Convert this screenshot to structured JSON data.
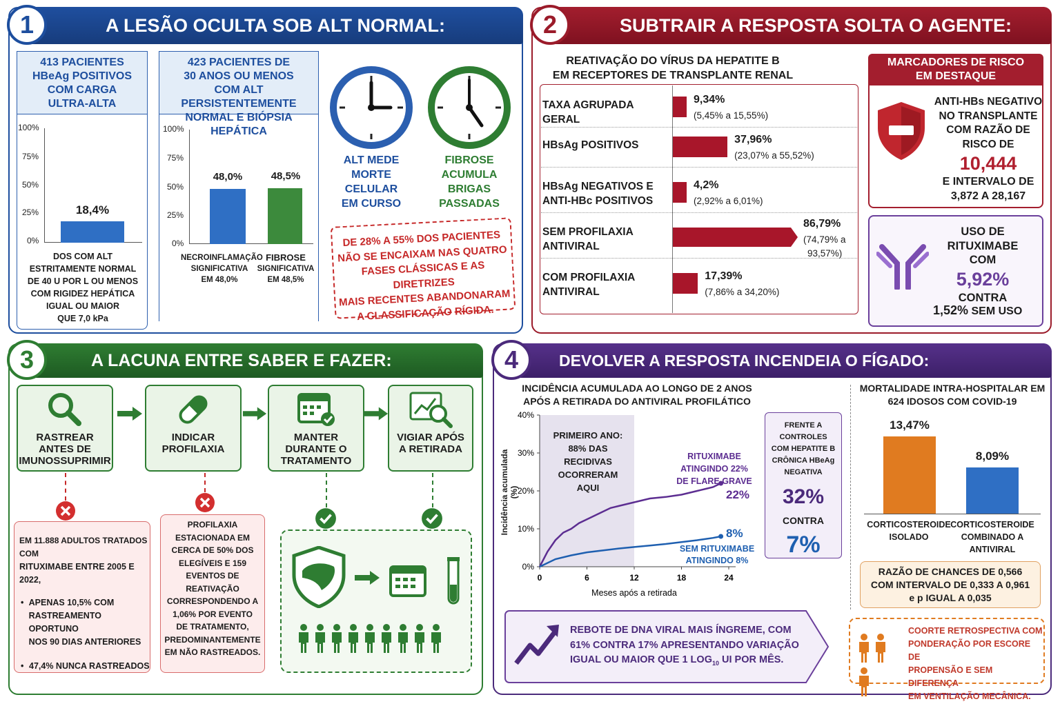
{
  "colors": {
    "blue": "#1d4e9e",
    "red": "#9b1b2a",
    "green": "#2e7d32",
    "purple": "#4b2a7b",
    "orange": "#e07b20"
  },
  "p1": {
    "number": "1",
    "title": "A LESÃO OCULTA SOB ALT NORMAL:",
    "box1": {
      "l1": "413 PACIENTES",
      "l2": "HBeAg POSITIVOS",
      "l3": "COM CARGA",
      "l4": "ULTRA-ALTA"
    },
    "box2": {
      "l1": "423 PACIENTES DE",
      "l2": "30 ANOS OU MENOS",
      "l3": "COM ALT PERSISTENTEMENTE",
      "l4": "NORMAL E BIÓPSIA HEPÁTICA"
    },
    "ticks": [
      "100%",
      "75%",
      "50%",
      "25%",
      "0%"
    ],
    "chart1": {
      "value_label": "18,4%",
      "caption": [
        "DOS COM ALT",
        "ESTRITAMENTE NORMAL",
        "DE 40 U POR L OU MENOS",
        "COM RIGIDEZ HEPÁTICA",
        "IGUAL OU MAIOR",
        "QUE 7,0 kPa"
      ]
    },
    "chart2": {
      "v1": "48,0%",
      "v2": "48,5%",
      "c1": [
        "NECROINFLAMAÇÃO",
        "SIGNIFICATIVA",
        "EM 48,0%"
      ],
      "c2": [
        "FIBROSE",
        "SIGNIFICATIVA",
        "EM 48,5%"
      ]
    },
    "clock1": [
      "ALT MEDE",
      "MORTE CELULAR",
      "EM CURSO"
    ],
    "clock2": [
      "FIBROSE",
      "ACUMULA BRIGAS",
      "PASSADAS"
    ],
    "stamp": [
      "DE 28% A 55% DOS PACIENTES",
      "NÃO SE ENCAIXAM NAS QUATRO",
      "FASES CLÁSSICAS E AS DIRETRIZES",
      "MAIS RECENTES ABANDONARAM",
      "A CLASSIFICAÇÃO RÍGIDA."
    ]
  },
  "chart_data": [
    {
      "type": "bar",
      "categories": [
        "DOS COM ALT ESTRITAMENTE NORMAL DE 40 U POR L OU MENOS COM RIGIDEZ HEPÁTICA IGUAL OU MAIOR QUE 7,0 kPa"
      ],
      "values": [
        18.4
      ],
      "ylim": [
        0,
        100
      ]
    },
    {
      "type": "bar",
      "categories": [
        "NECROINFLAMAÇÃO SIGNIFICATIVA",
        "FIBROSE SIGNIFICATIVA"
      ],
      "values": [
        48.0,
        48.5
      ],
      "ylim": [
        0,
        100
      ]
    },
    {
      "type": "bar",
      "title": "REATIVAÇÃO DO VÍRUS DA HEPATITE B EM RECEPTORES DE TRANSPLANTE RENAL",
      "categories": [
        "TAXA AGRUPADA GERAL",
        "HBsAg POSITIVOS",
        "HBsAg NEGATIVOS E ANTI-HBc POSITIVOS",
        "SEM PROFILAXIA ANTIVIRAL",
        "COM PROFILAXIA ANTIVIRAL"
      ],
      "values": [
        9.34,
        37.96,
        4.2,
        86.79,
        17.39
      ]
    },
    {
      "type": "line",
      "title": "INCIDÊNCIA ACUMULADA AO LONGO DE 2 ANOS APÓS A RETIRADA DO ANTIVIRAL PROFILÁTICO",
      "xlabel": "Meses após a retirada",
      "ylabel": "Incidência acumulada (%)",
      "xlim": [
        0,
        24
      ],
      "ylim": [
        0,
        40
      ],
      "series": [
        {
          "name": "RITUXIMABE",
          "x": [
            0,
            1,
            2,
            3,
            4,
            5,
            6,
            7,
            8,
            9,
            10,
            11,
            12,
            13,
            14,
            15,
            16,
            17,
            18,
            19,
            20,
            21,
            22,
            23
          ],
          "values": [
            0,
            4,
            7,
            9,
            10,
            11.5,
            12.5,
            13.5,
            14.5,
            15.5,
            16,
            16.5,
            17,
            17.5,
            18,
            18.2,
            18.4,
            18.7,
            19,
            19.5,
            20,
            20.5,
            21,
            22
          ]
        },
        {
          "name": "SEM RITUXIMABE",
          "x": [
            0,
            2,
            4,
            6,
            8,
            10,
            12,
            14,
            16,
            18,
            20,
            22,
            23
          ],
          "values": [
            0,
            2,
            3,
            3.8,
            4.3,
            4.8,
            5.2,
            5.6,
            6,
            6.5,
            7,
            7.6,
            8
          ]
        }
      ]
    },
    {
      "type": "bar",
      "title": "MORTALIDADE INTRA-HOSPITALAR EM 624 IDOSOS COM COVID-19",
      "categories": [
        "CORTICOSTEROIDE ISOLADO",
        "CORTICOSTEROIDE COMBINADO A ANTIVIRAL"
      ],
      "values": [
        13.47,
        8.09
      ]
    }
  ],
  "p2": {
    "number": "2",
    "title": "SUBTRAIR A RESPOSTA SOLTA O AGENTE:",
    "chart_title": [
      "REATIVAÇÃO DO VÍRUS DA HEPATITE B",
      "EM RECEPTORES DE TRANSPLANTE RENAL"
    ],
    "rows": [
      {
        "label": [
          "TAXA AGRUPADA GERAL"
        ],
        "value": "9,34%",
        "ci": "(5,45% a 15,55%)"
      },
      {
        "label": [
          "HBsAg POSITIVOS"
        ],
        "value": "37,96%",
        "ci": "(23,07% a 55,52%)"
      },
      {
        "label": [
          "HBsAg NEGATIVOS E",
          "ANTI-HBc POSITIVOS"
        ],
        "value": "4,2%",
        "ci": "(2,92% a 6,01%)"
      },
      {
        "label": [
          "SEM PROFILAXIA",
          "ANTIVIRAL"
        ],
        "value": "86,79%",
        "ci": "(74,79% a",
        "ci2": "93,57%)"
      },
      {
        "label": [
          "COM PROFILAXIA",
          "ANTIVIRAL"
        ],
        "value": "17,39%",
        "ci": "(7,86% a 34,20%)"
      }
    ],
    "risk_title": [
      "MARCADORES DE RISCO",
      "EM DESTAQUE"
    ],
    "risk1": [
      "ANTI-HBs NEGATIVO",
      "NO TRANSPLANTE",
      "COM RAZÃO DE",
      "RISCO DE"
    ],
    "risk1_value": "10,444",
    "risk1_b": [
      "E INTERVALO DE",
      "3,872 A 28,167"
    ],
    "risk2": [
      "USO DE",
      "RITUXIMABE",
      "COM"
    ],
    "risk2_value": "5,92%",
    "risk2_b": "CONTRA",
    "risk2_c": "1,52%",
    "risk2_d": "SEM USO"
  },
  "p3": {
    "number": "3",
    "title": "A LACUNA ENTRE SABER E FAZER:",
    "steps": [
      [
        "RASTREAR",
        "ANTES DE",
        "IMUNOSSUPRIMIR"
      ],
      [
        "INDICAR",
        "PROFILAXIA"
      ],
      [
        "MANTER",
        "DURANTE O",
        "TRATAMENTO"
      ],
      [
        "VIGIAR APÓS",
        "A RETIRADA"
      ]
    ],
    "box1": {
      "l1": "EM 11.888 ADULTOS TRATADOS COM",
      "l2": "RITUXIMABE ENTRE 2005 E 2022,",
      "b1": [
        "APENAS 10,5% COM",
        "RASTREAMENTO OPORTUNO",
        "NOS 90 DIAS ANTERIORES"
      ],
      "b2": "47,4% NUNCA RASTREADOS"
    },
    "box2": [
      "PROFILAXIA",
      "ESTACIONADA EM",
      "CERCA DE 50% DOS",
      "ELEGÍVEIS E 159",
      "EVENTOS DE",
      "REATIVAÇÃO",
      "CORRESPONDENDO A",
      "1,06% POR EVENTO",
      "DE TRATAMENTO,",
      "PREDOMINANTEMENTE",
      "EM NÃO RASTREADOS."
    ]
  },
  "p4": {
    "number": "4",
    "title": "DEVOLVER A RESPOSTA INCENDEIA O FÍGADO:",
    "chart_title": [
      "INCIDÊNCIA ACUMULADA AO LONGO DE 2 ANOS",
      "APÓS A RETIRADA DO ANTIVIRAL PROFILÁTICO"
    ],
    "yticks": [
      "40%",
      "30%",
      "20%",
      "10%",
      "0%"
    ],
    "xticks": [
      "0",
      "6",
      "12",
      "18",
      "24"
    ],
    "xlabel": "Meses após a retirada",
    "ylabel": "Incidência acumulada (%)",
    "shade": [
      "PRIMEIRO ANO:",
      "88% DAS",
      "RECIDIVAS",
      "OCORRERAM",
      "AQUI"
    ],
    "rit": [
      "RITUXIMABE",
      "ATINGINDO 22%",
      "DE FLARE GRAVE"
    ],
    "rit_end": "22%",
    "non_end": "8%",
    "non": [
      "SEM RITUXIMABE",
      "ATINGINDO 8%"
    ],
    "ctrl": [
      "FRENTE A CONTROLES",
      "COM HEPATITE B",
      "CRÔNICA HBeAg",
      "NEGATIVA"
    ],
    "ctrl_v1": "32%",
    "ctrl_mid": "CONTRA",
    "ctrl_v2": "7%",
    "rebote": [
      "REBOTE DE DNA VIRAL MAIS ÍNGREME, COM",
      "61% CONTRA 17% APRESENTANDO VARIAÇÃO",
      "IGUAL OU MAIOR QUE 1 LOG",
      "10",
      " UI POR MÊS."
    ],
    "mort_title": [
      "MORTALIDADE INTRA-HOSPITALAR EM",
      "624 IDOSOS COM COVID-19"
    ],
    "m1": "13,47%",
    "m2": "8,09%",
    "mc1": [
      "CORTICOSTEROIDE",
      "ISOLADO"
    ],
    "mc2": [
      "CORTICOSTEROIDE",
      "COMBINADO A",
      "ANTIVIRAL"
    ],
    "or": [
      "RAZÃO DE CHANCES DE 0,566",
      "COM INTERVALO DE 0,333 A 0,961",
      "e p IGUAL A 0,035"
    ],
    "coorte": [
      "COORTE RETROSPECTIVA COM",
      "PONDERAÇÃO POR ESCORE DE",
      "PROPENSÃO E SEM DIFERENÇA",
      "EM VENTILAÇÃO MECÂNICA."
    ]
  }
}
